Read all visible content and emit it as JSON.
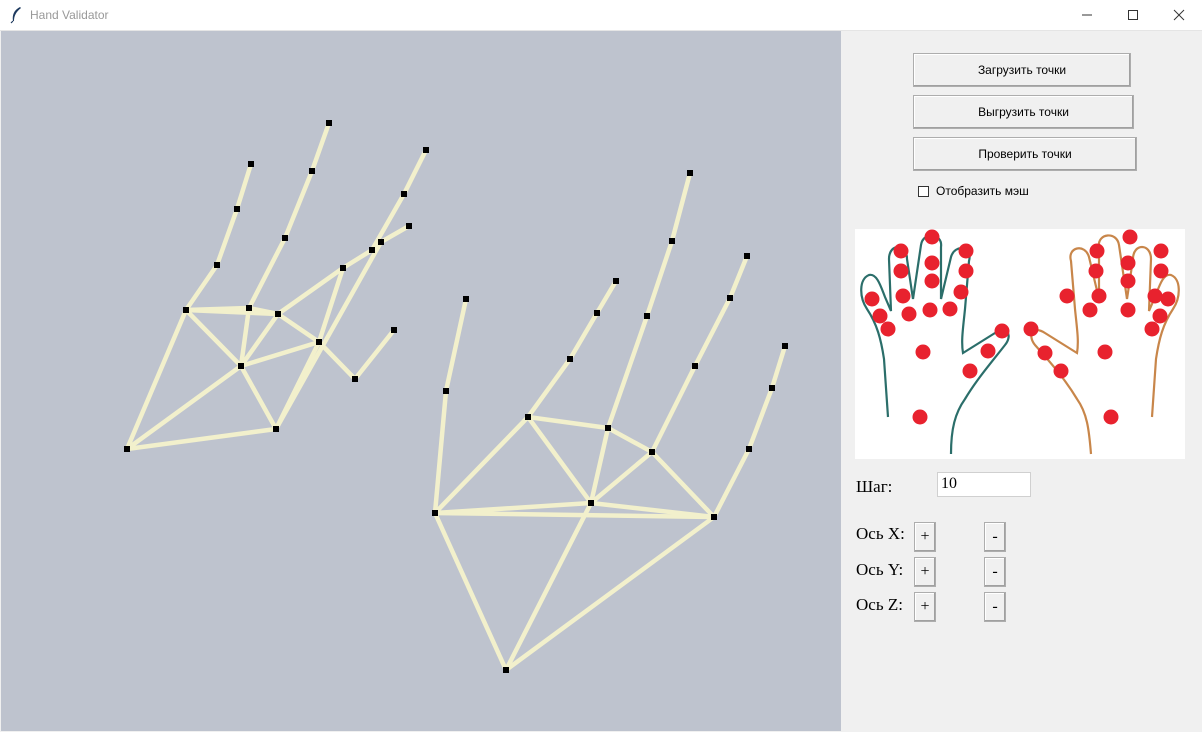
{
  "window": {
    "title": "Hand Validator"
  },
  "buttons": {
    "load": "Загрузить точки",
    "unload": "Выгрузить точки",
    "check": "Проверить точки"
  },
  "mesh_checkbox": {
    "label": "Отобразить мэш",
    "checked": false
  },
  "step": {
    "label": "Шаг:",
    "value": "10"
  },
  "axes": [
    {
      "label": "Ось X:",
      "plus": "+",
      "minus": "-"
    },
    {
      "label": "Ось Y:",
      "plus": "+",
      "minus": "-"
    },
    {
      "label": "Ось Z:",
      "plus": "+",
      "minus": "-"
    }
  ],
  "colors": {
    "canvas_bg": "#bec3ce",
    "bone": "#f2f0cc",
    "joint": "#000000",
    "ref_point": "#e8222e",
    "left_outline": "#2b6e6a",
    "right_outline": "#c8864a"
  },
  "icons": {
    "app": "feather-icon",
    "minimize": "minimize-icon",
    "maximize": "maximize-icon",
    "close": "close-icon"
  }
}
